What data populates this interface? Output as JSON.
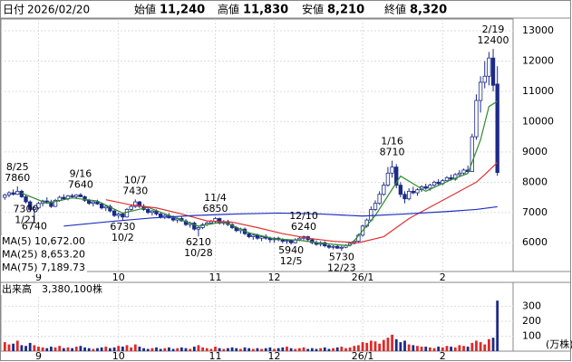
{
  "header": {
    "date": {
      "label": "日付",
      "value": "2026/02/20"
    },
    "open": {
      "label": "始値",
      "value": "11,240",
      "color": "#000000"
    },
    "high": {
      "label": "高値",
      "value": "11,830",
      "color": "#e00000"
    },
    "low": {
      "label": "安値",
      "value": "8,210",
      "color": "#008000"
    },
    "close": {
      "label": "終値",
      "value": "8,320",
      "color": "#000000"
    }
  },
  "chart_data": [
    {
      "type": "candlestick",
      "ylim": [
        5050,
        13390
      ],
      "yticks": [
        6000,
        7000,
        8000,
        9000,
        10000,
        11000,
        12000,
        13000
      ],
      "xticks": [
        {
          "value": 8,
          "label": "9"
        },
        {
          "value": 27,
          "label": "10"
        },
        {
          "value": 50,
          "label": "11"
        },
        {
          "value": 64,
          "label": "12"
        },
        {
          "value": 85,
          "label": "26/1"
        },
        {
          "value": 104,
          "label": "2"
        }
      ],
      "grid": true,
      "up_color": "#ffffff",
      "down_color": "#1c2a88",
      "edge_color": "#1c2a88",
      "ohlc": [
        [
          7500,
          7620,
          7420,
          7580
        ],
        [
          7580,
          7700,
          7500,
          7650
        ],
        [
          7650,
          7760,
          7560,
          7600
        ],
        [
          7600,
          7860,
          7580,
          7700
        ],
        [
          7700,
          7750,
          7480,
          7520
        ],
        [
          7520,
          7580,
          7300,
          7350
        ],
        [
          7350,
          7400,
          7050,
          7100
        ],
        [
          7100,
          7200,
          6740,
          7150
        ],
        [
          7150,
          7350,
          7100,
          7300
        ],
        [
          7300,
          7420,
          7200,
          7380
        ],
        [
          7380,
          7500,
          7300,
          7350
        ],
        [
          7350,
          7420,
          7150,
          7200
        ],
        [
          7200,
          7450,
          7180,
          7400
        ],
        [
          7400,
          7550,
          7350,
          7500
        ],
        [
          7500,
          7600,
          7420,
          7450
        ],
        [
          7450,
          7580,
          7400,
          7550
        ],
        [
          7550,
          7620,
          7480,
          7520
        ],
        [
          7520,
          7600,
          7450,
          7580
        ],
        [
          7580,
          7640,
          7500,
          7520
        ],
        [
          7520,
          7560,
          7350,
          7400
        ],
        [
          7400,
          7450,
          7250,
          7300
        ],
        [
          7300,
          7380,
          7200,
          7350
        ],
        [
          7350,
          7420,
          7250,
          7280
        ],
        [
          7280,
          7330,
          7100,
          7150
        ],
        [
          7150,
          7250,
          7050,
          7200
        ],
        [
          7200,
          7260,
          7000,
          7050
        ],
        [
          7050,
          7100,
          6850,
          6900
        ],
        [
          6900,
          7000,
          6800,
          6950
        ],
        [
          6950,
          7000,
          6730,
          6850
        ],
        [
          6850,
          7150,
          6830,
          7100
        ],
        [
          7100,
          7250,
          7050,
          7200
        ],
        [
          7200,
          7430,
          7150,
          7350
        ],
        [
          7350,
          7380,
          7150,
          7200
        ],
        [
          7200,
          7280,
          7050,
          7100
        ],
        [
          7100,
          7150,
          6950,
          7000
        ],
        [
          7000,
          7080,
          6900,
          7050
        ],
        [
          7050,
          7100,
          6900,
          6950
        ],
        [
          6950,
          7000,
          6800,
          6850
        ],
        [
          6850,
          6950,
          6780,
          6900
        ],
        [
          6900,
          6980,
          6800,
          6820
        ],
        [
          6820,
          6900,
          6700,
          6750
        ],
        [
          6750,
          6840,
          6650,
          6800
        ],
        [
          6800,
          6880,
          6700,
          6720
        ],
        [
          6720,
          6780,
          6550,
          6600
        ],
        [
          6600,
          6700,
          6500,
          6650
        ],
        [
          6650,
          6700,
          6400,
          6450
        ],
        [
          6450,
          6550,
          6210,
          6500
        ],
        [
          6500,
          6650,
          6450,
          6600
        ],
        [
          6600,
          6700,
          6550,
          6650
        ],
        [
          6650,
          6750,
          6600,
          6700
        ],
        [
          6700,
          6850,
          6650,
          6800
        ],
        [
          6800,
          6830,
          6600,
          6650
        ],
        [
          6650,
          6750,
          6580,
          6700
        ],
        [
          6700,
          6760,
          6550,
          6600
        ],
        [
          6600,
          6650,
          6450,
          6500
        ],
        [
          6500,
          6550,
          6350,
          6400
        ],
        [
          6400,
          6500,
          6300,
          6450
        ],
        [
          6450,
          6500,
          6250,
          6300
        ],
        [
          6300,
          6350,
          6150,
          6200
        ],
        [
          6200,
          6300,
          6100,
          6250
        ],
        [
          6250,
          6300,
          6100,
          6150
        ],
        [
          6150,
          6250,
          6050,
          6200
        ],
        [
          6200,
          6280,
          6100,
          6150
        ],
        [
          6150,
          6200,
          6000,
          6100
        ],
        [
          6100,
          6180,
          6000,
          6150
        ],
        [
          6150,
          6200,
          6050,
          6100
        ],
        [
          6100,
          6150,
          5980,
          6050
        ],
        [
          6050,
          6120,
          5960,
          6080
        ],
        [
          6080,
          6100,
          5940,
          6000
        ],
        [
          6000,
          6150,
          5980,
          6100
        ],
        [
          6100,
          6200,
          6050,
          6150
        ],
        [
          6150,
          6240,
          6080,
          6200
        ],
        [
          6200,
          6230,
          6050,
          6100
        ],
        [
          6100,
          6150,
          5950,
          6000
        ],
        [
          6000,
          6080,
          5900,
          5950
        ],
        [
          5950,
          6050,
          5880,
          6000
        ],
        [
          6000,
          6050,
          5850,
          5900
        ],
        [
          5900,
          5950,
          5800,
          5850
        ],
        [
          5850,
          5920,
          5780,
          5880
        ],
        [
          5880,
          5950,
          5800,
          5820
        ],
        [
          5820,
          5900,
          5730,
          5850
        ],
        [
          5850,
          5950,
          5820,
          5920
        ],
        [
          5920,
          6000,
          5880,
          5980
        ],
        [
          5980,
          6100,
          5950,
          6050
        ],
        [
          6050,
          6300,
          6020,
          6250
        ],
        [
          6250,
          6600,
          6200,
          6550
        ],
        [
          6550,
          6800,
          6500,
          6750
        ],
        [
          6750,
          7200,
          6700,
          7100
        ],
        [
          7100,
          7400,
          7050,
          7300
        ],
        [
          7300,
          7700,
          7250,
          7600
        ],
        [
          7600,
          8000,
          7550,
          7900
        ],
        [
          7900,
          8500,
          7850,
          8300
        ],
        [
          8300,
          8710,
          8150,
          8500
        ],
        [
          8500,
          8600,
          7800,
          7900
        ],
        [
          7900,
          8000,
          7500,
          7600
        ],
        [
          7600,
          7700,
          7300,
          7450
        ],
        [
          7450,
          7800,
          7400,
          7700
        ],
        [
          7700,
          7850,
          7600,
          7650
        ],
        [
          7650,
          7800,
          7550,
          7750
        ],
        [
          7750,
          7900,
          7680,
          7850
        ],
        [
          7850,
          7950,
          7750,
          7800
        ],
        [
          7800,
          7950,
          7720,
          7900
        ],
        [
          7900,
          8050,
          7850,
          8000
        ],
        [
          8000,
          8100,
          7900,
          7950
        ],
        [
          7950,
          8100,
          7900,
          8050
        ],
        [
          8050,
          8200,
          8000,
          8150
        ],
        [
          8150,
          8250,
          8050,
          8100
        ],
        [
          8100,
          8300,
          8050,
          8250
        ],
        [
          8250,
          8400,
          8200,
          8300
        ],
        [
          8300,
          8450,
          8250,
          8400
        ],
        [
          8400,
          8550,
          8300,
          8350
        ],
        [
          8350,
          9600,
          8350,
          9500
        ],
        [
          9500,
          10900,
          9400,
          10700
        ],
        [
          10700,
          11500,
          10300,
          11300
        ],
        [
          11300,
          12000,
          11100,
          11500
        ],
        [
          11500,
          12300,
          11200,
          12100
        ],
        [
          12100,
          12400,
          11000,
          11200
        ],
        [
          11240,
          11830,
          8210,
          8320
        ]
      ],
      "moving_averages": [
        {
          "name": "MA(5)",
          "color": "#2e8b2e",
          "legend_value": {
            "value": 10672,
            "label": "10,672.00"
          },
          "x": [
            4,
            10,
            16,
            22,
            28,
            34,
            40,
            46,
            52,
            58,
            64,
            70,
            76,
            82,
            88,
            94,
            100,
            106,
            110,
            113,
            115,
            117
          ],
          "values": [
            7640,
            7300,
            7480,
            7380,
            6980,
            7170,
            6850,
            6550,
            6690,
            6330,
            6130,
            6080,
            5970,
            5900,
            6900,
            8200,
            7700,
            8080,
            8290,
            9400,
            10500,
            10672
          ]
        },
        {
          "name": "MA(25)",
          "color": "#e03030",
          "legend_value": {
            "value": 8653.2,
            "label": "8,653.20"
          },
          "x": [
            24,
            30,
            36,
            42,
            48,
            54,
            60,
            66,
            72,
            78,
            84,
            90,
            96,
            102,
            108,
            112,
            114,
            117
          ],
          "values": [
            7420,
            7250,
            7150,
            6950,
            6720,
            6680,
            6500,
            6300,
            6150,
            6050,
            6000,
            6200,
            6800,
            7250,
            7700,
            8000,
            8250,
            8653
          ]
        },
        {
          "name": "MA(75)",
          "color": "#2030c0",
          "legend_value": {
            "value": 7189.73,
            "label": "7,189.73"
          },
          "x": [
            14,
            25,
            35,
            45,
            55,
            65,
            75,
            85,
            95,
            105,
            112,
            117
          ],
          "values": [
            6550,
            6700,
            6820,
            6900,
            6950,
            6980,
            6950,
            6880,
            6950,
            7030,
            7100,
            7190
          ]
        }
      ],
      "annotations": [
        {
          "date": "8/25",
          "value": 7860
        },
        {
          "value": 6740
        },
        {
          "date": "9/16",
          "value": 7640
        },
        {
          "date": "10/2",
          "value": 6730
        },
        {
          "date": "10/7",
          "value": 7430
        },
        {
          "date": "10/28",
          "value": 6210
        },
        {
          "date": "11/4",
          "value": 6850
        },
        {
          "date": "12/5",
          "value": 5940
        },
        {
          "date": "12/10",
          "value": 6240
        },
        {
          "date": "12/23",
          "value": 5730
        },
        {
          "date": "1/16",
          "value": 8710
        },
        {
          "date": "1/21",
          "value": 7300
        },
        {
          "date": "2/19",
          "value": 12400
        }
      ]
    },
    {
      "type": "bar",
      "title": "出来高",
      "subtitle": "3,380,100株",
      "unit": "(万株)",
      "ylim": [
        0,
        460
      ],
      "yticks": [
        100,
        200,
        300
      ],
      "up_color": "#e02828",
      "down_color": "#1c2a88",
      "values": [
        60,
        45,
        50,
        70,
        40,
        35,
        55,
        40,
        30,
        25,
        20,
        30,
        25,
        35,
        20,
        25,
        20,
        30,
        35,
        25,
        20,
        15,
        20,
        25,
        30,
        20,
        25,
        35,
        30,
        40,
        25,
        45,
        30,
        20,
        15,
        20,
        25,
        15,
        20,
        25,
        15,
        20,
        25,
        20,
        15,
        30,
        40,
        25,
        20,
        15,
        30,
        20,
        15,
        20,
        25,
        20,
        15,
        25,
        20,
        15,
        20,
        15,
        20,
        25,
        15,
        20,
        25,
        30,
        20,
        15,
        20,
        25,
        15,
        20,
        15,
        20,
        25,
        15,
        20,
        25,
        30,
        20,
        25,
        35,
        40,
        60,
        55,
        70,
        65,
        50,
        75,
        90,
        110,
        80,
        60,
        70,
        45,
        40,
        35,
        30,
        30,
        25,
        20,
        30,
        25,
        35,
        30,
        25,
        40,
        35,
        30,
        55,
        70,
        60,
        45,
        80,
        90,
        338.01
      ]
    }
  ]
}
